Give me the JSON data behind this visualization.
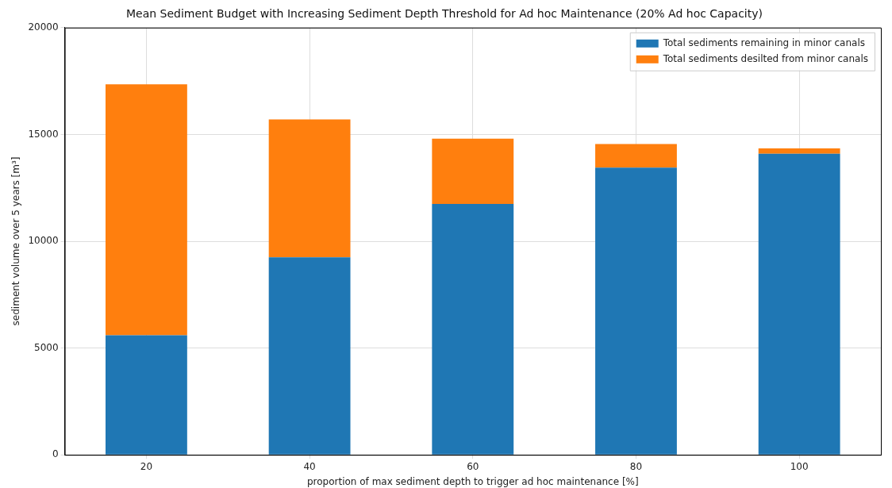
{
  "chart_data": {
    "type": "bar",
    "title": "Mean Sediment Budget with Increasing Sediment Depth Threshold for Ad hoc Maintenance (20% Ad hoc Capacity)",
    "xlabel": "proportion of max sediment depth to trigger ad hoc maintenance [%]",
    "ylabel": "sediment volume over 5 years [m³]",
    "categories": [
      "20",
      "40",
      "60",
      "80",
      "100"
    ],
    "series": [
      {
        "name": "Total sediments remaining in minor canals",
        "color": "#1f77b4",
        "values": [
          5600,
          9250,
          11750,
          13450,
          14100
        ]
      },
      {
        "name": "Total sediments desilted from minor canals",
        "color": "#ff7f0e",
        "values": [
          11750,
          6450,
          3050,
          1100,
          250
        ]
      }
    ],
    "stacked": true,
    "ylim": [
      0,
      20000
    ],
    "yticks": [
      0,
      5000,
      10000,
      15000,
      20000
    ],
    "grid": true,
    "legend": "top right"
  }
}
